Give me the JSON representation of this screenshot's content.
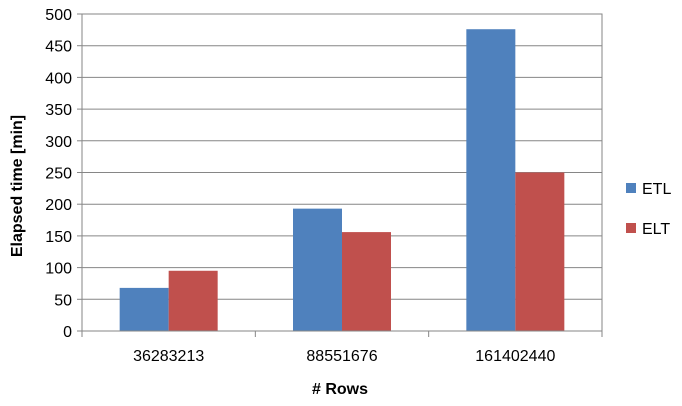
{
  "chart_data": {
    "type": "bar",
    "title": "",
    "xlabel": "# Rows",
    "ylabel": "Elapsed time [min]",
    "categories": [
      "36283213",
      "88551676",
      "161402440"
    ],
    "series": [
      {
        "name": "ETL",
        "values": [
          68,
          193,
          476
        ],
        "color": "#4F81BD"
      },
      {
        "name": "ELT",
        "values": [
          95,
          156,
          250
        ],
        "color": "#C0504D"
      }
    ],
    "ylim": [
      0,
      500
    ],
    "yticks": [
      "0",
      "50",
      "100",
      "150",
      "200",
      "250",
      "300",
      "350",
      "400",
      "450",
      "500"
    ],
    "grid": true,
    "legend": "right"
  }
}
